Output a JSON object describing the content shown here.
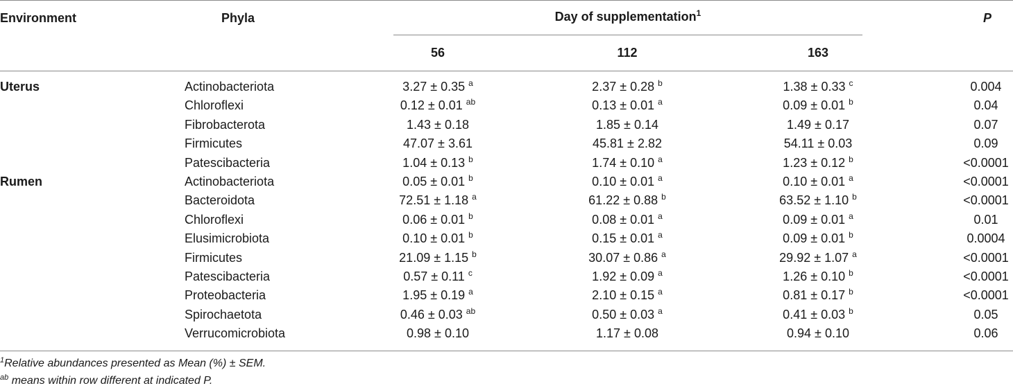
{
  "header": {
    "environment": "Environment",
    "phyla": "Phyla",
    "day_group": "Day of supplementation",
    "day_group_sup": "1",
    "day1": "56",
    "day2": "112",
    "day3": "163",
    "p": "P"
  },
  "rows": [
    {
      "env": "Uterus",
      "phyla": "Actinobacteriota",
      "d56": "3.27 ± 0.35",
      "s56": "a",
      "d112": "2.37 ± 0.28",
      "s112": "b",
      "d163": "1.38 ± 0.33",
      "s163": "c",
      "p": "0.004"
    },
    {
      "env": "",
      "phyla": "Chloroflexi",
      "d56": "0.12 ± 0.01",
      "s56": "ab",
      "d112": "0.13 ± 0.01",
      "s112": "a",
      "d163": "0.09 ± 0.01",
      "s163": "b",
      "p": "0.04"
    },
    {
      "env": "",
      "phyla": "Fibrobacterota",
      "d56": "1.43 ± 0.18",
      "s56": "",
      "d112": "1.85 ± 0.14",
      "s112": "",
      "d163": "1.49 ± 0.17",
      "s163": "",
      "p": "0.07"
    },
    {
      "env": "",
      "phyla": "Firmicutes",
      "d56": "47.07 ± 3.61",
      "s56": "",
      "d112": "45.81 ± 2.82",
      "s112": "",
      "d163": "54.11 ± 0.03",
      "s163": "",
      "p": "0.09"
    },
    {
      "env": "",
      "phyla": "Patescibacteria",
      "d56": "1.04 ± 0.13",
      "s56": "b",
      "d112": "1.74 ± 0.10",
      "s112": "a",
      "d163": "1.23 ± 0.12",
      "s163": "b",
      "p": "<0.0001"
    },
    {
      "env": "Rumen",
      "phyla": "Actinobacteriota",
      "d56": "0.05 ± 0.01",
      "s56": "b",
      "d112": "0.10 ± 0.01",
      "s112": "a",
      "d163": "0.10 ± 0.01",
      "s163": "a",
      "p": "<0.0001"
    },
    {
      "env": "",
      "phyla": "Bacteroidota",
      "d56": "72.51 ± 1.18",
      "s56": "a",
      "d112": "61.22 ± 0.88",
      "s112": "b",
      "d163": "63.52 ± 1.10",
      "s163": "b",
      "p": "<0.0001"
    },
    {
      "env": "",
      "phyla": "Chloroflexi",
      "d56": "0.06 ± 0.01",
      "s56": "b",
      "d112": "0.08 ± 0.01",
      "s112": "a",
      "d163": "0.09 ± 0.01",
      "s163": "a",
      "p": "0.01"
    },
    {
      "env": "",
      "phyla": "Elusimicrobiota",
      "d56": "0.10 ± 0.01",
      "s56": "b",
      "d112": "0.15 ± 0.01",
      "s112": "a",
      "d163": "0.09 ± 0.01",
      "s163": "b",
      "p": "0.0004"
    },
    {
      "env": "",
      "phyla": "Firmicutes",
      "d56": "21.09 ± 1.15",
      "s56": "b",
      "d112": "30.07 ± 0.86",
      "s112": "a",
      "d163": "29.92 ± 1.07",
      "s163": "a",
      "p": "<0.0001"
    },
    {
      "env": "",
      "phyla": "Patescibacteria",
      "d56": "0.57 ± 0.11",
      "s56": "c",
      "d112": "1.92 ± 0.09",
      "s112": "a",
      "d163": "1.26 ± 0.10",
      "s163": "b",
      "p": "<0.0001"
    },
    {
      "env": "",
      "phyla": "Proteobacteria",
      "d56": "1.95 ± 0.19",
      "s56": "a",
      "d112": "2.10 ± 0.15",
      "s112": "a",
      "d163": "0.81 ± 0.17",
      "s163": "b",
      "p": "<0.0001"
    },
    {
      "env": "",
      "phyla": "Spirochaetota",
      "d56": "0.46 ± 0.03",
      "s56": "ab",
      "d112": "0.50 ± 0.03",
      "s112": "a",
      "d163": "0.41 ± 0.03",
      "s163": "b",
      "p": "0.05"
    },
    {
      "env": "",
      "phyla": "Verrucomicrobiota",
      "d56": "0.98 ± 0.10",
      "s56": "",
      "d112": "1.17 ± 0.08",
      "s112": "",
      "d163": "0.94 ± 0.10",
      "s163": "",
      "p": "0.06"
    }
  ],
  "footnotes": {
    "note1_sup": "1",
    "note1": "Relative abundances presented as Mean (%) ± SEM.",
    "note2_sup": "ab",
    "note2": " means within row different at indicated P."
  }
}
